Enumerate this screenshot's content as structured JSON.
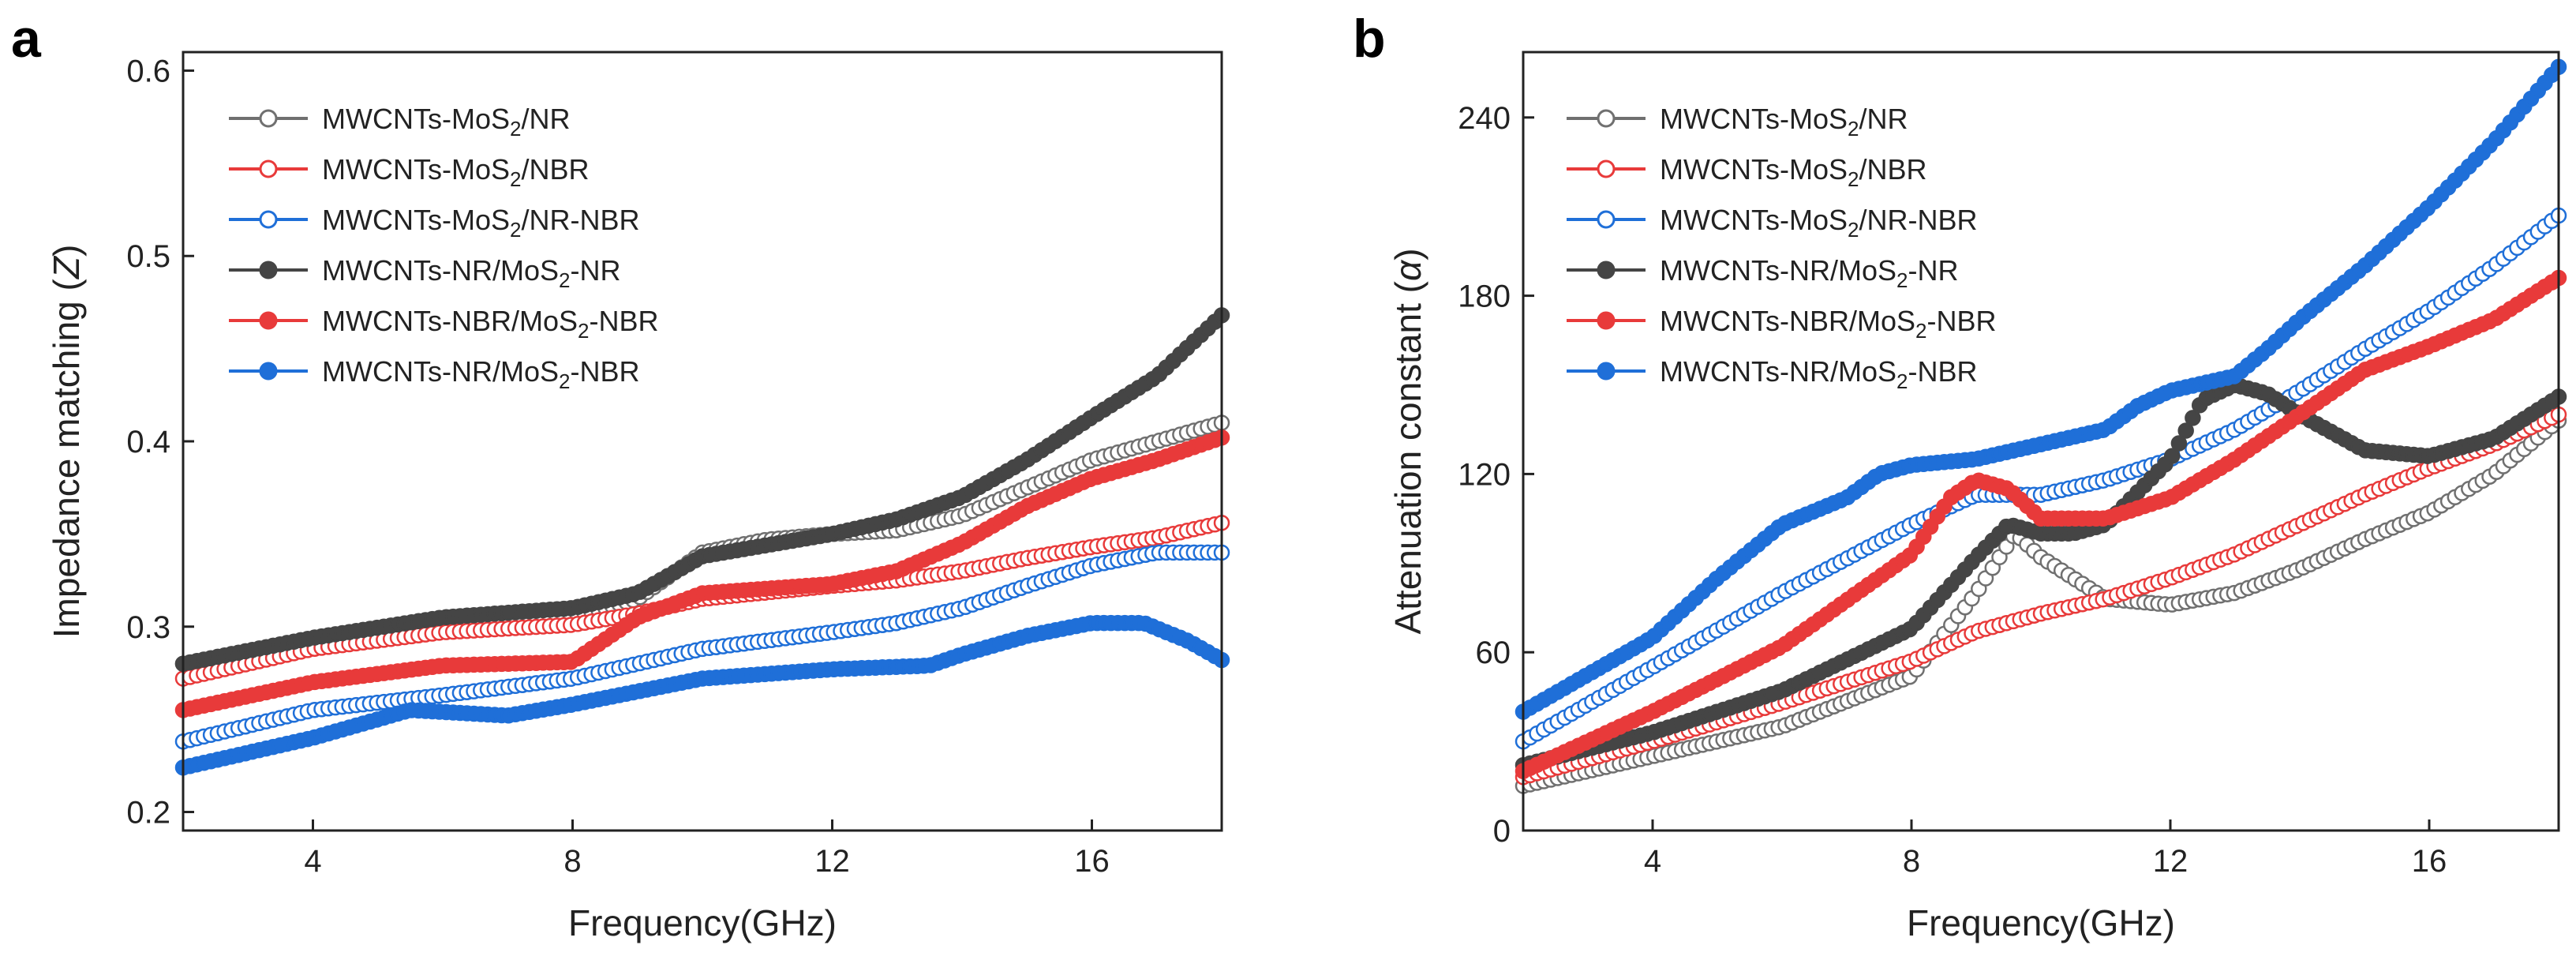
{
  "colors": {
    "gray_open": "#707070",
    "gray_filled": "#454545",
    "red": "#E83A3A",
    "blue": "#1F6FD8"
  },
  "chart_data": [
    {
      "panel": "a",
      "type": "scatter",
      "xlabel": "Frequency(GHz)",
      "ylabel_main": "Impedance matching (",
      "ylabel_symbol": "Z",
      "ylabel_close": ")",
      "xlim": [
        2,
        18
      ],
      "ylim": [
        0.19,
        0.61
      ],
      "xticks": [
        {
          "v": 4,
          "label": "4"
        },
        {
          "v": 8,
          "label": "8"
        },
        {
          "v": 12,
          "label": "12"
        },
        {
          "v": 16,
          "label": "16"
        }
      ],
      "yticks": [
        {
          "v": 0.2,
          "label": "0.2"
        },
        {
          "v": 0.3,
          "label": "0.3"
        },
        {
          "v": 0.4,
          "label": "0.4"
        },
        {
          "v": 0.5,
          "label": "0.5"
        },
        {
          "v": 0.6,
          "label": "0.6"
        }
      ],
      "legend_position": "top-left",
      "series": [
        {
          "legend_pre": "MWCNTs-MoS",
          "legend_sub": "2",
          "legend_post": "/NR",
          "color": "#707070",
          "filled": false,
          "points": [
            [
              2,
              0.28
            ],
            [
              4,
              0.292
            ],
            [
              6,
              0.302
            ],
            [
              8,
              0.305
            ],
            [
              9,
              0.315
            ],
            [
              10,
              0.34
            ],
            [
              11,
              0.347
            ],
            [
              12,
              0.35
            ],
            [
              13,
              0.352
            ],
            [
              14,
              0.36
            ],
            [
              15,
              0.375
            ],
            [
              16,
              0.39
            ],
            [
              17,
              0.4
            ],
            [
              18,
              0.41
            ]
          ]
        },
        {
          "legend_pre": "MWCNTs-MoS",
          "legend_sub": "2",
          "legend_post": "/NBR",
          "color": "#E83A3A",
          "filled": false,
          "points": [
            [
              2,
              0.272
            ],
            [
              4,
              0.288
            ],
            [
              6,
              0.297
            ],
            [
              8,
              0.301
            ],
            [
              9,
              0.307
            ],
            [
              10,
              0.315
            ],
            [
              12,
              0.322
            ],
            [
              13,
              0.325
            ],
            [
              14,
              0.33
            ],
            [
              15,
              0.337
            ],
            [
              16,
              0.343
            ],
            [
              17,
              0.348
            ],
            [
              18,
              0.356
            ]
          ]
        },
        {
          "legend_pre": "MWCNTs-MoS",
          "legend_sub": "2",
          "legend_post": "/NR-NBR",
          "color": "#1F6FD8",
          "filled": false,
          "points": [
            [
              2,
              0.238
            ],
            [
              4,
              0.255
            ],
            [
              6,
              0.263
            ],
            [
              8,
              0.272
            ],
            [
              10,
              0.288
            ],
            [
              12,
              0.297
            ],
            [
              13,
              0.302
            ],
            [
              14,
              0.31
            ],
            [
              15,
              0.322
            ],
            [
              16,
              0.333
            ],
            [
              17,
              0.34
            ],
            [
              18,
              0.34
            ]
          ]
        },
        {
          "legend_pre": "MWCNTs-NR/MoS",
          "legend_sub": "2",
          "legend_post": "-NR",
          "color": "#454545",
          "filled": true,
          "points": [
            [
              2,
              0.28
            ],
            [
              4,
              0.294
            ],
            [
              6,
              0.305
            ],
            [
              8,
              0.31
            ],
            [
              9,
              0.318
            ],
            [
              10,
              0.338
            ],
            [
              12,
              0.35
            ],
            [
              13,
              0.358
            ],
            [
              14,
              0.37
            ],
            [
              15,
              0.39
            ],
            [
              16,
              0.413
            ],
            [
              17,
              0.435
            ],
            [
              18,
              0.468
            ]
          ]
        },
        {
          "legend_pre": "MWCNTs-NBR/MoS",
          "legend_sub": "2",
          "legend_post": "-NBR",
          "color": "#E83A3A",
          "filled": true,
          "points": [
            [
              2,
              0.255
            ],
            [
              4,
              0.27
            ],
            [
              6,
              0.279
            ],
            [
              8,
              0.281
            ],
            [
              9,
              0.305
            ],
            [
              10,
              0.318
            ],
            [
              12,
              0.323
            ],
            [
              13,
              0.33
            ],
            [
              14,
              0.345
            ],
            [
              15,
              0.365
            ],
            [
              16,
              0.38
            ],
            [
              17,
              0.39
            ],
            [
              18,
              0.402
            ]
          ]
        },
        {
          "legend_pre": "MWCNTs-NR/MoS",
          "legend_sub": "2",
          "legend_post": "-NBR",
          "color": "#1F6FD8",
          "filled": true,
          "points": [
            [
              2,
              0.224
            ],
            [
              4,
              0.24
            ],
            [
              5.5,
              0.255
            ],
            [
              7,
              0.252
            ],
            [
              8,
              0.258
            ],
            [
              10,
              0.272
            ],
            [
              12,
              0.277
            ],
            [
              13.5,
              0.279
            ],
            [
              14,
              0.285
            ],
            [
              15,
              0.295
            ],
            [
              16,
              0.302
            ],
            [
              16.8,
              0.302
            ],
            [
              17.5,
              0.292
            ],
            [
              18,
              0.282
            ]
          ]
        }
      ]
    },
    {
      "panel": "b",
      "type": "scatter",
      "xlabel": "Frequency(GHz)",
      "ylabel_main": "Attenuation constant (",
      "ylabel_symbol": "α",
      "ylabel_close": ")",
      "xlim": [
        2,
        18
      ],
      "ylim": [
        0,
        262
      ],
      "xticks": [
        {
          "v": 4,
          "label": "4"
        },
        {
          "v": 8,
          "label": "8"
        },
        {
          "v": 12,
          "label": "12"
        },
        {
          "v": 16,
          "label": "16"
        }
      ],
      "yticks": [
        {
          "v": 0,
          "label": "0"
        },
        {
          "v": 60,
          "label": "60"
        },
        {
          "v": 120,
          "label": "120"
        },
        {
          "v": 180,
          "label": "180"
        },
        {
          "v": 240,
          "label": "240"
        }
      ],
      "legend_position": "top-left",
      "series": [
        {
          "legend_pre": "MWCNTs-MoS",
          "legend_sub": "2",
          "legend_post": "/NR",
          "color": "#707070",
          "filled": false,
          "points": [
            [
              2,
              15
            ],
            [
              4,
              25
            ],
            [
              6,
              35
            ],
            [
              8,
              52
            ],
            [
              9,
              80
            ],
            [
              9.6,
              100
            ],
            [
              10,
              92
            ],
            [
              11,
              78
            ],
            [
              12,
              76
            ],
            [
              13,
              80
            ],
            [
              14,
              88
            ],
            [
              15,
              98
            ],
            [
              16,
              107
            ],
            [
              17,
              120
            ],
            [
              18,
              138
            ]
          ]
        },
        {
          "legend_pre": "MWCNTs-MoS",
          "legend_sub": "2",
          "legend_post": "/NBR",
          "color": "#E83A3A",
          "filled": false,
          "points": [
            [
              2,
              18
            ],
            [
              4,
              30
            ],
            [
              6,
              43
            ],
            [
              8,
              57
            ],
            [
              9,
              67
            ],
            [
              10,
              73
            ],
            [
              11,
              78
            ],
            [
              12,
              85
            ],
            [
              13,
              93
            ],
            [
              14,
              103
            ],
            [
              15,
              113
            ],
            [
              16,
              122
            ],
            [
              17,
              130
            ],
            [
              18,
              140
            ]
          ]
        },
        {
          "legend_pre": "MWCNTs-MoS",
          "legend_sub": "2",
          "legend_post": "/NR-NBR",
          "color": "#1F6FD8",
          "filled": false,
          "points": [
            [
              2,
              30
            ],
            [
              4,
              55
            ],
            [
              6,
              80
            ],
            [
              8,
              103
            ],
            [
              9,
              113
            ],
            [
              10,
              113
            ],
            [
              11,
              118
            ],
            [
              12,
              125
            ],
            [
              13,
              135
            ],
            [
              14,
              148
            ],
            [
              15,
              162
            ],
            [
              16,
              175
            ],
            [
              17,
              190
            ],
            [
              18,
              207
            ]
          ]
        },
        {
          "legend_pre": "MWCNTs-NR/MoS",
          "legend_sub": "2",
          "legend_post": "-NR",
          "color": "#454545",
          "filled": true,
          "points": [
            [
              2,
              22
            ],
            [
              4,
              33
            ],
            [
              6,
              47
            ],
            [
              8,
              68
            ],
            [
              9,
              92
            ],
            [
              9.5,
              103
            ],
            [
              10,
              100
            ],
            [
              10.5,
              100
            ],
            [
              11,
              103
            ],
            [
              12,
              125
            ],
            [
              12.5,
              145
            ],
            [
              13,
              150
            ],
            [
              13.5,
              147
            ],
            [
              14,
              140
            ],
            [
              15,
              128
            ],
            [
              16,
              126
            ],
            [
              17,
              132
            ],
            [
              18,
              146
            ]
          ]
        },
        {
          "legend_pre": "MWCNTs-NBR/MoS",
          "legend_sub": "2",
          "legend_post": "-NBR",
          "color": "#E83A3A",
          "filled": true,
          "points": [
            [
              2,
              20
            ],
            [
              4,
              40
            ],
            [
              6,
              62
            ],
            [
              8,
              93
            ],
            [
              8.6,
              112
            ],
            [
              9,
              118
            ],
            [
              9.5,
              115
            ],
            [
              10,
              105
            ],
            [
              11,
              105
            ],
            [
              12,
              112
            ],
            [
              13,
              125
            ],
            [
              14,
              140
            ],
            [
              15,
              155
            ],
            [
              16,
              163
            ],
            [
              17,
              172
            ],
            [
              18,
              186
            ]
          ]
        },
        {
          "legend_pre": "MWCNTs-NR/MoS",
          "legend_sub": "2",
          "legend_post": "-NBR",
          "color": "#1F6FD8",
          "filled": true,
          "points": [
            [
              2,
              40
            ],
            [
              4,
              65
            ],
            [
              5,
              85
            ],
            [
              6,
              103
            ],
            [
              7,
              112
            ],
            [
              7.5,
              120
            ],
            [
              8,
              123
            ],
            [
              9,
              125
            ],
            [
              10,
              130
            ],
            [
              11,
              135
            ],
            [
              11.5,
              143
            ],
            [
              12,
              148
            ],
            [
              13,
              153
            ],
            [
              13.5,
              162
            ],
            [
              14,
              172
            ],
            [
              15,
              190
            ],
            [
              16,
              210
            ],
            [
              17,
              232
            ],
            [
              18,
              257
            ]
          ]
        }
      ]
    }
  ]
}
